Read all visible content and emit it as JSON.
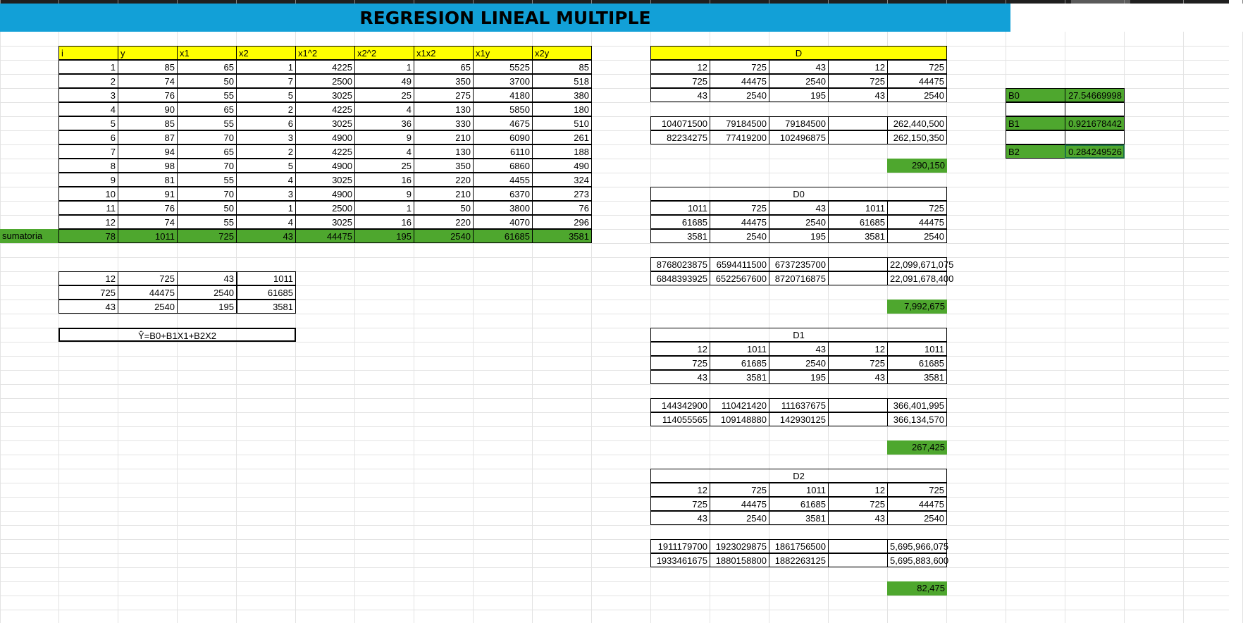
{
  "title": "REGRESION LINEAL MULTIPLE",
  "colors": {
    "banner": "#12a0d7",
    "header_yellow": "#ffff00",
    "sum_green": "#4ea72e"
  },
  "main_table": {
    "headers": [
      "i",
      "y",
      "x1",
      "x2",
      "x1^2",
      "x2^2",
      "x1x2",
      "x1y",
      "x2y"
    ],
    "rows": [
      [
        "1",
        "85",
        "65",
        "1",
        "4225",
        "1",
        "65",
        "5525",
        "85"
      ],
      [
        "2",
        "74",
        "50",
        "7",
        "2500",
        "49",
        "350",
        "3700",
        "518"
      ],
      [
        "3",
        "76",
        "55",
        "5",
        "3025",
        "25",
        "275",
        "4180",
        "380"
      ],
      [
        "4",
        "90",
        "65",
        "2",
        "4225",
        "4",
        "130",
        "5850",
        "180"
      ],
      [
        "5",
        "85",
        "55",
        "6",
        "3025",
        "36",
        "330",
        "4675",
        "510"
      ],
      [
        "6",
        "87",
        "70",
        "3",
        "4900",
        "9",
        "210",
        "6090",
        "261"
      ],
      [
        "7",
        "94",
        "65",
        "2",
        "4225",
        "4",
        "130",
        "6110",
        "188"
      ],
      [
        "8",
        "98",
        "70",
        "5",
        "4900",
        "25",
        "350",
        "6860",
        "490"
      ],
      [
        "9",
        "81",
        "55",
        "4",
        "3025",
        "16",
        "220",
        "4455",
        "324"
      ],
      [
        "10",
        "91",
        "70",
        "3",
        "4900",
        "9",
        "210",
        "6370",
        "273"
      ],
      [
        "11",
        "76",
        "50",
        "1",
        "2500",
        "1",
        "50",
        "3800",
        "76"
      ],
      [
        "12",
        "74",
        "55",
        "4",
        "3025",
        "16",
        "220",
        "4070",
        "296"
      ]
    ],
    "sum_label": "sumatoria",
    "sums": [
      "78",
      "1011",
      "725",
      "43",
      "44475",
      "195",
      "2540",
      "61685",
      "3581"
    ]
  },
  "system_matrix": [
    [
      "12",
      "725",
      "43",
      "1011"
    ],
    [
      "725",
      "44475",
      "2540",
      "61685"
    ],
    [
      "43",
      "2540",
      "195",
      "3581"
    ]
  ],
  "formula": "Ŷ=B0+B1X1+B2X2",
  "determinants": [
    {
      "label": "D",
      "matrix": [
        [
          "12",
          "725",
          "43",
          "12",
          "725"
        ],
        [
          "725",
          "44475",
          "2540",
          "725",
          "44475"
        ],
        [
          "43",
          "2540",
          "195",
          "43",
          "2540"
        ]
      ],
      "products": [
        [
          "104071500",
          "79184500",
          "79184500",
          "",
          "262,440,500"
        ],
        [
          "82234275",
          "77419200",
          "102496875",
          "",
          "262,150,350"
        ]
      ],
      "result": "290,150"
    },
    {
      "label": "D0",
      "matrix": [
        [
          "1011",
          "725",
          "43",
          "1011",
          "725"
        ],
        [
          "61685",
          "44475",
          "2540",
          "61685",
          "44475"
        ],
        [
          "3581",
          "2540",
          "195",
          "3581",
          "2540"
        ]
      ],
      "products": [
        [
          "8768023875",
          "6594411500",
          "6737235700",
          "",
          "22,099,671,075"
        ],
        [
          "6848393925",
          "6522567600",
          "8720716875",
          "",
          "22,091,678,400"
        ]
      ],
      "result": "7,992,675"
    },
    {
      "label": "D1",
      "matrix": [
        [
          "12",
          "1011",
          "43",
          "12",
          "1011"
        ],
        [
          "725",
          "61685",
          "2540",
          "725",
          "61685"
        ],
        [
          "43",
          "3581",
          "195",
          "43",
          "3581"
        ]
      ],
      "products": [
        [
          "144342900",
          "110421420",
          "111637675",
          "",
          "366,401,995"
        ],
        [
          "114055565",
          "109148880",
          "142930125",
          "",
          "366,134,570"
        ]
      ],
      "result": "267,425"
    },
    {
      "label": "D2",
      "matrix": [
        [
          "12",
          "725",
          "1011",
          "12",
          "725"
        ],
        [
          "725",
          "44475",
          "61685",
          "725",
          "44475"
        ],
        [
          "43",
          "2540",
          "3581",
          "43",
          "2540"
        ]
      ],
      "products": [
        [
          "1911179700",
          "1923029875",
          "1861756500",
          "",
          "5,695,966,075"
        ],
        [
          "1933461675",
          "1880158800",
          "1882263125",
          "",
          "5,695,883,600"
        ]
      ],
      "result": "82,475"
    }
  ],
  "coefficients": [
    {
      "label": "B0",
      "value": "27.54669998"
    },
    {
      "label": "B1",
      "value": "0.921678442"
    },
    {
      "label": "B2",
      "value": "0.284249526"
    }
  ]
}
